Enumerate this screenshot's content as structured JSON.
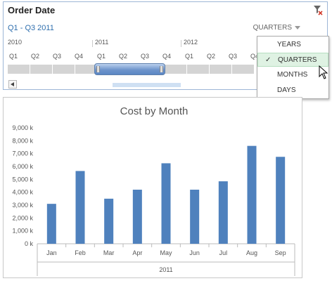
{
  "slicer": {
    "title": "Order Date",
    "range_label": "Q1 - Q3 2011",
    "level_selected": "QUARTERS",
    "years": [
      "2010",
      "2011",
      "2012"
    ],
    "quarters": [
      "Q1",
      "Q2",
      "Q3",
      "Q4",
      "Q1",
      "Q2",
      "Q3",
      "Q4",
      "Q1",
      "Q2",
      "Q3",
      "Q4"
    ],
    "selection_start_index": 4,
    "selection_end_index": 6
  },
  "menu": {
    "items": [
      {
        "label": "YEARS",
        "checked": false
      },
      {
        "label": "QUARTERS",
        "checked": true
      },
      {
        "label": "MONTHS",
        "checked": false
      },
      {
        "label": "DAYS",
        "checked": false
      }
    ],
    "check_glyph": "✓"
  },
  "colors": {
    "bar": "#4f81bd",
    "accent": "#2f6fae",
    "selected_menu_bg": "#dff2e3"
  },
  "chart_data": {
    "type": "bar",
    "title": "Cost by Month",
    "categories": [
      "Jan",
      "Feb",
      "Mar",
      "Apr",
      "May",
      "Jun",
      "Jul",
      "Aug",
      "Sep"
    ],
    "values": [
      3100,
      5650,
      3500,
      4200,
      6250,
      4200,
      4850,
      7600,
      6750
    ],
    "y_tick_labels": [
      "0 k",
      "1,000 k",
      "2,000 k",
      "3,000 k",
      "4,000 k",
      "5,000 k",
      "6,000 k",
      "7,000 k",
      "8,000 k",
      "9,000 k"
    ],
    "y_ticks": [
      0,
      1000,
      2000,
      3000,
      4000,
      5000,
      6000,
      7000,
      8000,
      9000
    ],
    "ylim": [
      0,
      9000
    ],
    "group_label": "2011",
    "grid": false,
    "legend": "none"
  }
}
